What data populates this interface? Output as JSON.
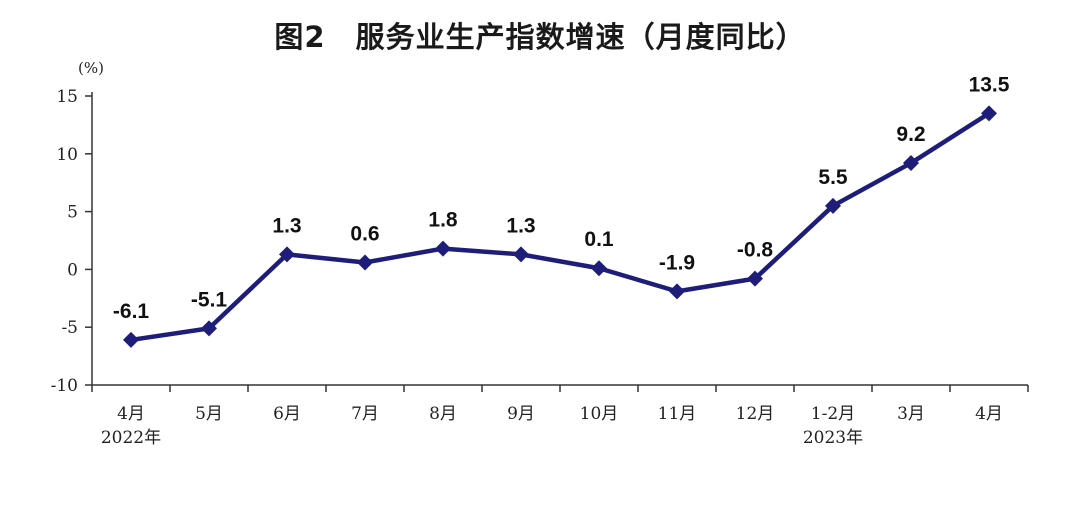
{
  "chart_data": {
    "type": "line",
    "title": "图2　服务业生产指数增速（月度同比）",
    "unit_label": "(%)",
    "categories": [
      "4月",
      "5月",
      "6月",
      "7月",
      "8月",
      "9月",
      "10月",
      "11月",
      "12月",
      "1-2月",
      "3月",
      "4月"
    ],
    "year_labels": [
      {
        "index": 0,
        "text": "2022年"
      },
      {
        "index": 9,
        "text": "2023年"
      }
    ],
    "series": [
      {
        "values": [
          -6.1,
          -5.1,
          1.3,
          0.6,
          1.8,
          1.3,
          0.1,
          -1.9,
          -0.8,
          5.5,
          9.2,
          13.5
        ]
      }
    ],
    "data_labels": [
      "-6.1",
      "-5.1",
      "1.3",
      "0.6",
      "1.8",
      "1.3",
      "0.1",
      "-1.9",
      "-0.8",
      "5.5",
      "9.2",
      "13.5"
    ],
    "ylim": [
      -10,
      15
    ],
    "yticks": [
      -10,
      -5,
      0,
      5,
      10,
      15
    ],
    "grid": false,
    "line_color": "#1e1e7a",
    "axis_color": "#333333"
  }
}
